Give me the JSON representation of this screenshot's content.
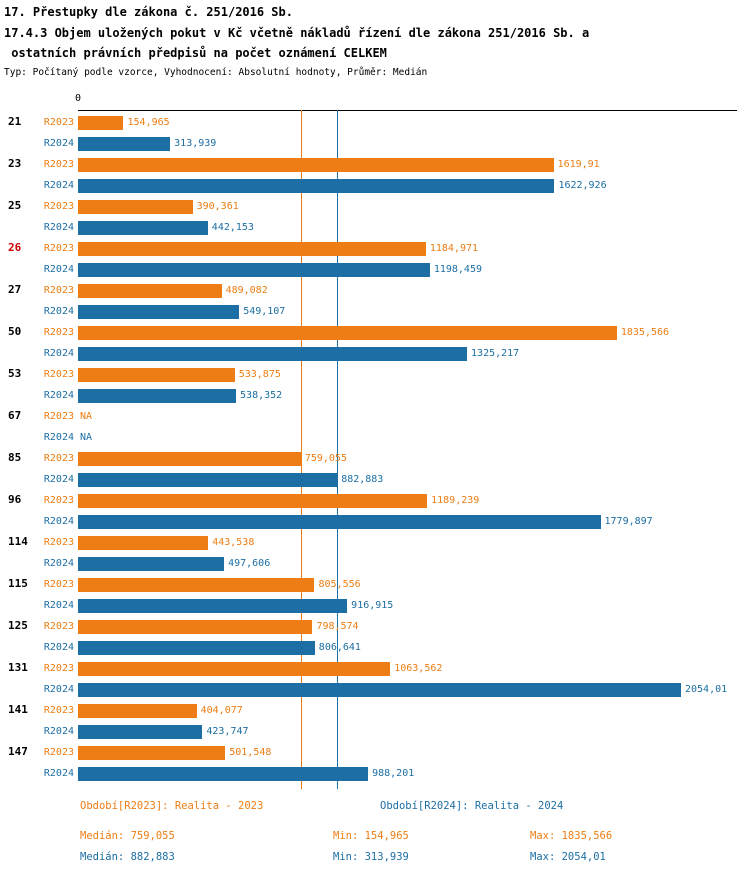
{
  "title": {
    "line1": "17. Přestupky dle zákona č. 251/2016 Sb.",
    "line2": "17.4.3 Objem uložených pokut v Kč včetně nákladů řízení dle zákona 251/2016 Sb. a",
    "line3": " ostatních právních předpisů na počet oznámení CELKEM",
    "subtitle": "Typ: Počítaný podle vzorce, Vyhodnocení: Absolutní hodnoty, Průměr: Medián"
  },
  "chart_data": {
    "type": "bar",
    "orientation": "horizontal",
    "axis_zero_label": "0",
    "xlim": [
      0,
      2054.01
    ],
    "xmax": 2054.01,
    "categories": [
      "21",
      "23",
      "25",
      "26",
      "27",
      "50",
      "53",
      "67",
      "85",
      "96",
      "114",
      "115",
      "125",
      "131",
      "141",
      "147"
    ],
    "highlight_category": "26",
    "highlight_color": "#CC0000",
    "series": [
      {
        "name": "R2023",
        "color": "#ED7D14",
        "values": [
          154.965,
          1619.91,
          390.361,
          1184.971,
          489.082,
          1835.566,
          533.875,
          null,
          759.055,
          1189.239,
          443.538,
          805.556,
          798.574,
          1063.562,
          404.077,
          501.548
        ],
        "labels": [
          "154,965",
          "1619,91",
          "390,361",
          "1184,971",
          "489,082",
          "1835,566",
          "533,875",
          "NA",
          "759,055",
          "1189,239",
          "443,538",
          "805,556",
          "798,574",
          "1063,562",
          "404,077",
          "501,548"
        ]
      },
      {
        "name": "R2024",
        "color": "#1C6EA4",
        "values": [
          313.939,
          1622.926,
          442.153,
          1198.459,
          549.107,
          1325.217,
          538.352,
          null,
          882.883,
          1779.897,
          497.606,
          916.915,
          806.641,
          2054.01,
          423.747,
          988.201
        ],
        "labels": [
          "313,939",
          "1622,926",
          "442,153",
          "1198,459",
          "549,107",
          "1325,217",
          "538,352",
          "NA",
          "882,883",
          "1779,897",
          "497,606",
          "916,915",
          "806,641",
          "2054,01",
          "423,747",
          "988,201"
        ]
      }
    ],
    "median_lines": [
      {
        "series": "R2023",
        "value": 759.055
      },
      {
        "series": "R2024",
        "value": 882.883
      }
    ]
  },
  "legend": [
    {
      "label": "Období[R2023]: Realita - 2023",
      "color": "#ED7D14"
    },
    {
      "label": "Období[R2024]: Realita - 2024",
      "color": "#1C6EA4"
    }
  ],
  "stats": [
    {
      "median": "Medián: 759,055",
      "min": "Min: 154,965",
      "max": "Max: 1835,566"
    },
    {
      "median": "Medián: 882,883",
      "min": "Min: 313,939",
      "max": "Max: 2054,01"
    }
  ]
}
